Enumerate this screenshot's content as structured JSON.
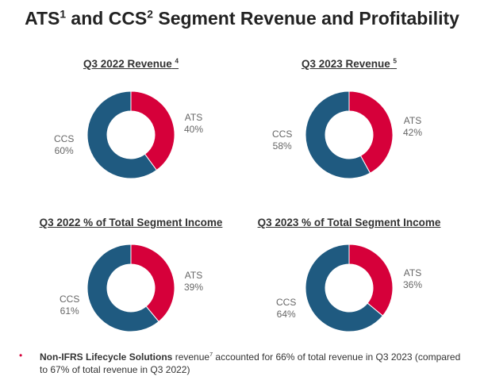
{
  "title": {
    "main_a": "ATS",
    "sup_a": "1",
    "main_b": " and CCS",
    "sup_b": "2",
    "main_c": " Segment Revenue and Profitability"
  },
  "colors": {
    "ATS": "#d6003a",
    "CCS": "#1f5a80"
  },
  "chart_data": [
    {
      "type": "pie",
      "donut": true,
      "title": "Q3 2022 Revenue",
      "title_sup": "4",
      "categories": [
        "ATS",
        "CCS"
      ],
      "values": [
        40,
        60
      ],
      "labels": [
        "40%",
        "60%"
      ]
    },
    {
      "type": "pie",
      "donut": true,
      "title": "Q3 2023 Revenue",
      "title_sup": "5",
      "categories": [
        "ATS",
        "CCS"
      ],
      "values": [
        42,
        58
      ],
      "labels": [
        "42%",
        "58%"
      ]
    },
    {
      "type": "pie",
      "donut": true,
      "title": "Q3 2022 % of Total Segment Income",
      "title_sup": "",
      "categories": [
        "ATS",
        "CCS"
      ],
      "values": [
        39,
        61
      ],
      "labels": [
        "39%",
        "61%"
      ]
    },
    {
      "type": "pie",
      "donut": true,
      "title": "Q3 2023 % of Total Segment Income",
      "title_sup": "",
      "categories": [
        "ATS",
        "CCS"
      ],
      "values": [
        36,
        64
      ],
      "labels": [
        "36%",
        "64%"
      ]
    }
  ],
  "note": {
    "bold": "Non-IFRS Lifecycle Solutions",
    "text1": " revenue",
    "sup": "7",
    "text2": " accounted for 66% of total revenue in Q3 2023 (compared to 67% of total revenue in Q3 2022)"
  }
}
